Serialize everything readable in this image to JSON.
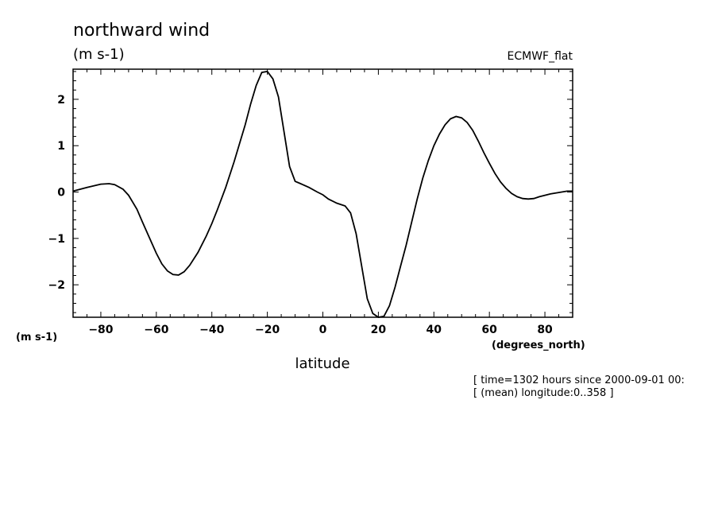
{
  "chart_data": {
    "type": "line",
    "title": "northward wind",
    "units": "(m s-1)",
    "source": "ECMWF_flat",
    "ylabel": "(m s-1)",
    "xlabel": "latitude",
    "x_units": "(degrees_north)",
    "xlim": [
      -90,
      90
    ],
    "ylim": [
      -2.7,
      2.65
    ],
    "x_ticks": [
      -80,
      -60,
      -40,
      -20,
      0,
      20,
      40,
      60,
      80
    ],
    "y_ticks": [
      -2,
      -1,
      0,
      1,
      2
    ],
    "grid": false,
    "series": [
      {
        "x": [
          -90,
          -85,
          -80,
          -77,
          -75,
          -72,
          -70,
          -67,
          -65,
          -62,
          -60,
          -58,
          -56,
          -54,
          -52,
          -50,
          -48,
          -45,
          -42,
          -40,
          -38,
          -35,
          -32,
          -30,
          -28,
          -26,
          -24,
          -22,
          -20,
          -18,
          -16,
          -14,
          -12,
          -10,
          -8,
          -5,
          -2,
          0,
          2,
          5,
          8,
          10,
          12,
          14,
          16,
          18,
          20,
          22,
          24,
          26,
          28,
          30,
          32,
          34,
          36,
          38,
          40,
          42,
          44,
          46,
          48,
          50,
          52,
          54,
          56,
          58,
          60,
          62,
          64,
          66,
          68,
          70,
          72,
          74,
          76,
          78,
          80,
          82,
          85,
          88,
          90
        ],
        "y": [
          0.02,
          0.1,
          0.17,
          0.18,
          0.16,
          0.06,
          -0.07,
          -0.37,
          -0.65,
          -1.05,
          -1.32,
          -1.55,
          -1.7,
          -1.78,
          -1.79,
          -1.72,
          -1.58,
          -1.3,
          -0.95,
          -0.68,
          -0.38,
          0.1,
          0.65,
          1.05,
          1.45,
          1.9,
          2.3,
          2.58,
          2.6,
          2.44,
          2.05,
          1.3,
          0.55,
          0.23,
          0.18,
          0.1,
          0.0,
          -0.06,
          -0.15,
          -0.24,
          -0.3,
          -0.45,
          -0.9,
          -1.6,
          -2.3,
          -2.62,
          -2.7,
          -2.68,
          -2.45,
          -2.05,
          -1.6,
          -1.15,
          -0.65,
          -0.15,
          0.3,
          0.68,
          1.0,
          1.25,
          1.45,
          1.58,
          1.63,
          1.6,
          1.5,
          1.33,
          1.1,
          0.85,
          0.62,
          0.4,
          0.22,
          0.08,
          -0.03,
          -0.1,
          -0.14,
          -0.15,
          -0.14,
          -0.1,
          -0.07,
          -0.04,
          -0.01,
          0.02,
          0.02
        ]
      }
    ]
  },
  "footer": {
    "line1": "[ time=1302 hours since 2000-09-01 00:",
    "line2": "[ (mean) longitude:0..358 ]"
  }
}
